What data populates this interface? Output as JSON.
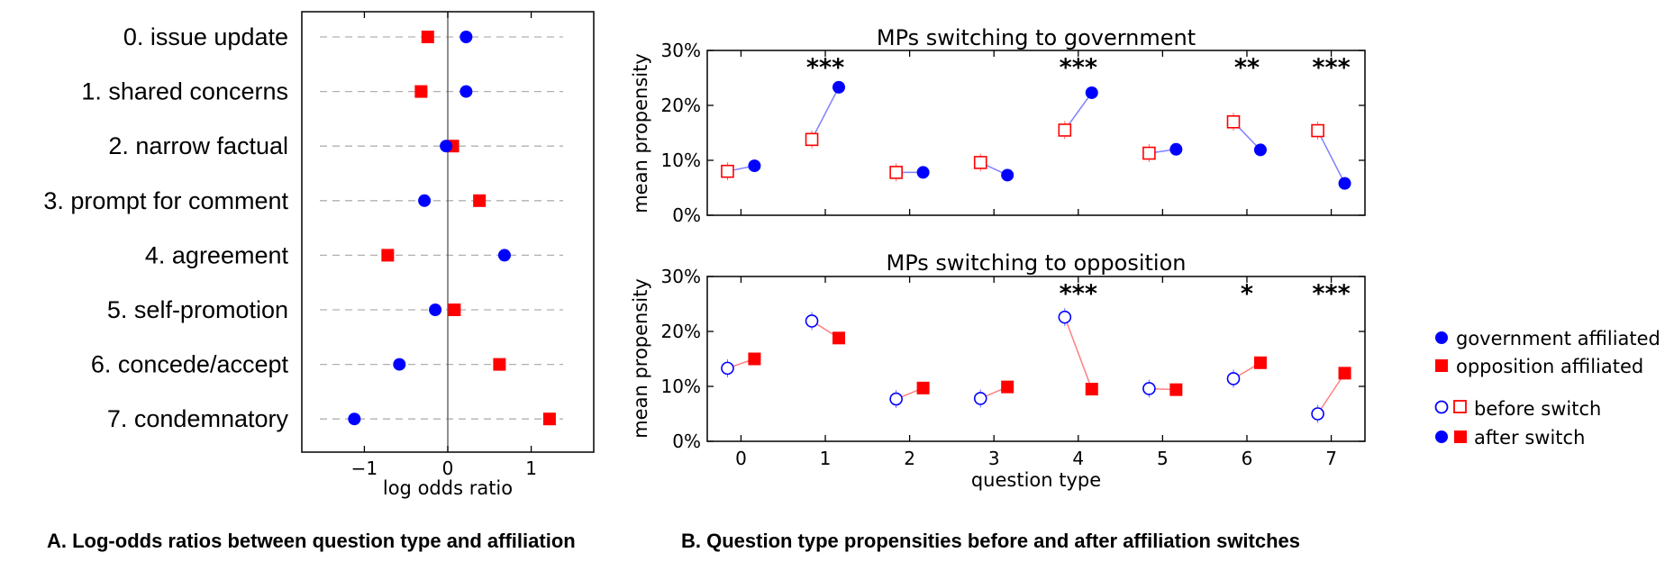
{
  "colors": {
    "government": "#0000ff",
    "opposition": "#ff0000",
    "connector_gov": "#8080ff",
    "connector_opp": "#ff8080"
  },
  "captions": {
    "a": "A. Log-odds ratios between question type and affiliation",
    "b": "B. Question type propensities before and after affiliation switches"
  },
  "chart_data": [
    {
      "type": "scatter",
      "panel": "A",
      "xlabel": "log odds ratio",
      "ylabel": "",
      "xlim": [
        -1.75,
        1.75
      ],
      "xticks": [
        -1,
        0,
        1
      ],
      "xtick_labels": [
        "−1",
        "0",
        "1"
      ],
      "grid": "dashed horizontal guides per category",
      "categories": [
        "0. issue update",
        "1. shared concerns",
        "2. narrow factual",
        "3. prompt for comment",
        "4. agreement",
        "5. self-promotion",
        "6. concede/accept",
        "7. condemnatory"
      ],
      "series": [
        {
          "name": "government affiliated",
          "marker": "circle",
          "values": [
            0.22,
            0.22,
            -0.02,
            -0.28,
            0.68,
            -0.15,
            -0.58,
            -1.12
          ]
        },
        {
          "name": "opposition affiliated",
          "marker": "square",
          "values": [
            -0.24,
            -0.32,
            0.06,
            0.38,
            -0.72,
            0.08,
            0.62,
            1.22
          ]
        }
      ]
    },
    {
      "type": "scatter",
      "panel": "B-top",
      "title": "MPs switching to government",
      "xlabel": "",
      "ylabel": "mean propensity",
      "ylim": [
        0,
        0.3
      ],
      "yticks": [
        0,
        0.1,
        0.2,
        0.3
      ],
      "ytick_labels": [
        "0%",
        "10%",
        "20%",
        "30%"
      ],
      "xlim": [
        -0.4,
        7.4
      ],
      "x": [
        0,
        1,
        2,
        3,
        4,
        5,
        6,
        7
      ],
      "series": [
        {
          "name": "before switch (opposition)",
          "marker": "open square",
          "values": [
            0.08,
            0.138,
            0.078,
            0.096,
            0.155,
            0.113,
            0.17,
            0.154
          ]
        },
        {
          "name": "after switch (government)",
          "marker": "filled circle",
          "values": [
            0.09,
            0.233,
            0.078,
            0.073,
            0.223,
            0.12,
            0.119,
            0.058
          ]
        }
      ],
      "annotations": [
        {
          "x": 1,
          "text": "***"
        },
        {
          "x": 4,
          "text": "***"
        },
        {
          "x": 6,
          "text": "**"
        },
        {
          "x": 7,
          "text": "***"
        }
      ]
    },
    {
      "type": "scatter",
      "panel": "B-bottom",
      "title": "MPs switching to opposition",
      "xlabel": "question type",
      "ylabel": "mean propensity",
      "ylim": [
        0,
        0.3
      ],
      "yticks": [
        0,
        0.1,
        0.2,
        0.3
      ],
      "ytick_labels": [
        "0%",
        "10%",
        "20%",
        "30%"
      ],
      "xlim": [
        -0.4,
        7.4
      ],
      "x": [
        0,
        1,
        2,
        3,
        4,
        5,
        6,
        7
      ],
      "xtick_labels": [
        "0",
        "1",
        "2",
        "3",
        "4",
        "5",
        "6",
        "7"
      ],
      "series": [
        {
          "name": "before switch (government)",
          "marker": "open circle",
          "values": [
            0.133,
            0.219,
            0.077,
            0.078,
            0.226,
            0.096,
            0.114,
            0.05
          ]
        },
        {
          "name": "after switch (opposition)",
          "marker": "filled square",
          "values": [
            0.15,
            0.188,
            0.097,
            0.099,
            0.095,
            0.094,
            0.143,
            0.124
          ]
        }
      ],
      "annotations": [
        {
          "x": 4,
          "text": "***"
        },
        {
          "x": 6,
          "text": "*"
        },
        {
          "x": 7,
          "text": "***"
        }
      ]
    }
  ],
  "legend": {
    "items": [
      "government affiliated",
      "opposition affiliated",
      "before switch",
      "after switch"
    ]
  }
}
